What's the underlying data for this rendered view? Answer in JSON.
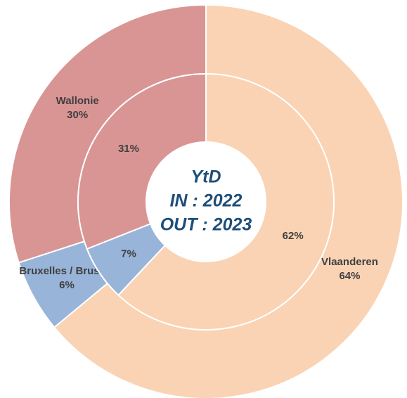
{
  "chart_data": {
    "type": "donut",
    "center_text": [
      "YtD",
      "IN : 2022",
      "OUT : 2023"
    ],
    "categories": [
      "Vlaanderen",
      "Bruxelles / Brussel",
      "Wallonie"
    ],
    "colors": [
      "#f9d3b4",
      "#98b4d9",
      "#d99594"
    ],
    "series": [
      {
        "ring": "outer",
        "values": [
          64,
          6,
          30
        ],
        "value_labels": [
          "64%",
          "6%",
          "30%"
        ]
      },
      {
        "ring": "inner",
        "values": [
          62,
          7,
          31
        ],
        "value_labels": [
          "62%",
          "7%",
          "31%"
        ]
      }
    ]
  }
}
